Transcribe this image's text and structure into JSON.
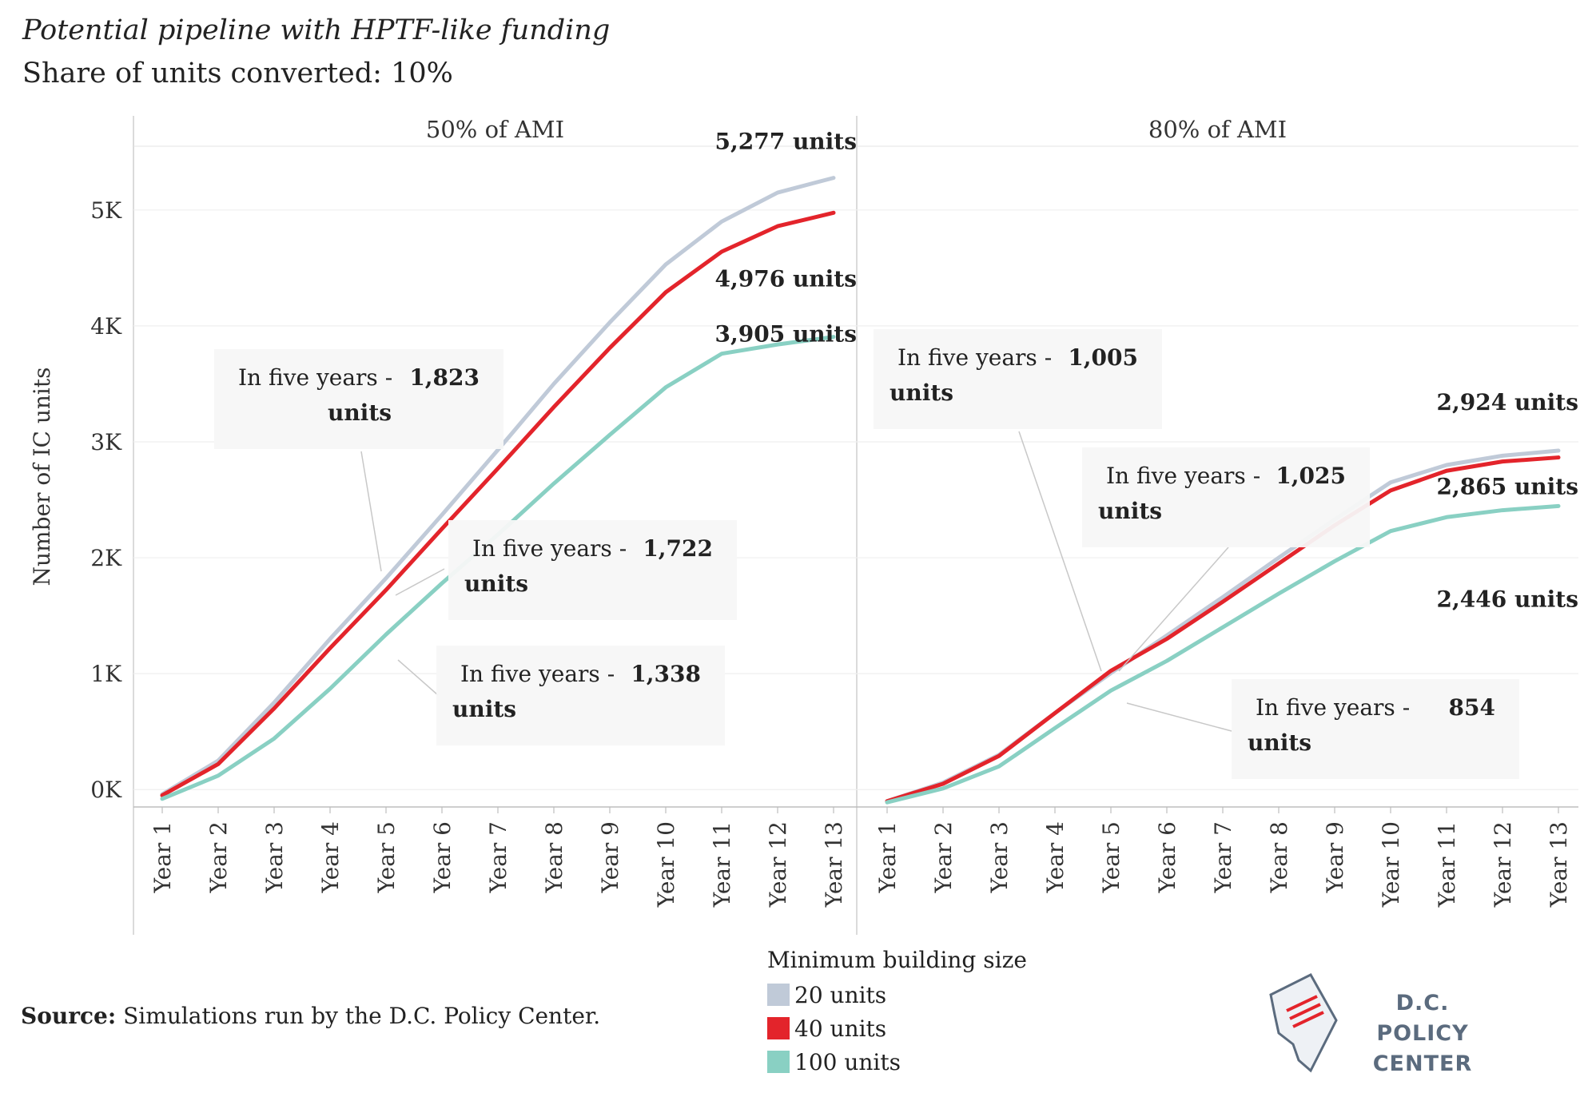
{
  "title": "Potential pipeline with HPTF-like funding",
  "subtitle": "Share of units converted: 10%",
  "source_label": "Source:",
  "source_text": "Simulations run by the D.C. Policy Center.",
  "legend": {
    "title": "Minimum building size",
    "items": [
      {
        "label": "20 units",
        "color": "#c0cad8"
      },
      {
        "label": "40 units",
        "color": "#e3242b"
      },
      {
        "label": "100 units",
        "color": "#89d0c3"
      }
    ]
  },
  "logo": {
    "line1": "D.C. POLICY",
    "line2": "CENTER"
  },
  "chart_data": {
    "type": "line",
    "ylabel": "Number of IC units",
    "yticks": [
      0,
      1000,
      2000,
      3000,
      4000,
      5000
    ],
    "ytick_labels": [
      "0K",
      "1K",
      "2K",
      "3K",
      "4K",
      "5K"
    ],
    "ylim": [
      -150,
      5550
    ],
    "x": [
      "Year 1",
      "Year 2",
      "Year 3",
      "Year 4",
      "Year 5",
      "Year 6",
      "Year 7",
      "Year 8",
      "Year 9",
      "Year 10",
      "Year 11",
      "Year 12",
      "Year 13"
    ],
    "panels": [
      {
        "title": "50% of AMI",
        "series": [
          {
            "name": "20 units",
            "color": "#c0cad8",
            "values": [
              -40,
              250,
              750,
              1300,
              1823,
              2370,
              2930,
              3500,
              4030,
              4530,
              4900,
              5150,
              5277
            ]
          },
          {
            "name": "40 units",
            "color": "#e3242b",
            "values": [
              -50,
              220,
              700,
              1220,
              1722,
              2250,
              2770,
              3300,
              3810,
              4290,
              4640,
              4860,
              4976
            ]
          },
          {
            "name": "100 units",
            "color": "#89d0c3",
            "values": [
              -80,
              120,
              440,
              870,
              1338,
              1780,
              2200,
              2640,
              3060,
              3470,
              3760,
              3840,
              3905
            ]
          }
        ],
        "end_labels": [
          {
            "text": "5,277 units",
            "value": 5277
          },
          {
            "text": "4,976 units",
            "value": 4976
          },
          {
            "text": "3,905 units",
            "value": 3905
          }
        ],
        "callouts": [
          {
            "prefix": "In five years - ",
            "number": "1,823",
            "suffix": "units"
          },
          {
            "prefix": "In five years - ",
            "number": "1,722",
            "suffix": "units"
          },
          {
            "prefix": "In five years - ",
            "number": "1,338",
            "suffix": "units"
          }
        ]
      },
      {
        "title": "80% of AMI",
        "series": [
          {
            "name": "20 units",
            "color": "#c0cad8",
            "values": [
              -100,
              60,
              300,
              660,
              1005,
              1330,
              1660,
              2000,
              2330,
              2650,
              2800,
              2880,
              2924
            ]
          },
          {
            "name": "40 units",
            "color": "#e3242b",
            "values": [
              -100,
              50,
              290,
              660,
              1025,
              1300,
              1620,
              1950,
              2280,
              2580,
              2750,
              2830,
              2865
            ]
          },
          {
            "name": "100 units",
            "color": "#89d0c3",
            "values": [
              -110,
              10,
              200,
              530,
              854,
              1110,
              1400,
              1690,
              1970,
              2230,
              2350,
              2410,
              2446
            ]
          }
        ],
        "end_labels": [
          {
            "text": "2,924 units",
            "value": 2924
          },
          {
            "text": "2,865 units",
            "value": 2865
          },
          {
            "text": "2,446 units",
            "value": 2446
          }
        ],
        "callouts": [
          {
            "prefix": "In five years - ",
            "number": "1,005",
            "suffix": "units"
          },
          {
            "prefix": "In five years - ",
            "number": "1,025",
            "suffix": "units"
          },
          {
            "prefix": "In five years - ",
            "number": "854",
            "suffix": "units"
          }
        ]
      }
    ]
  }
}
